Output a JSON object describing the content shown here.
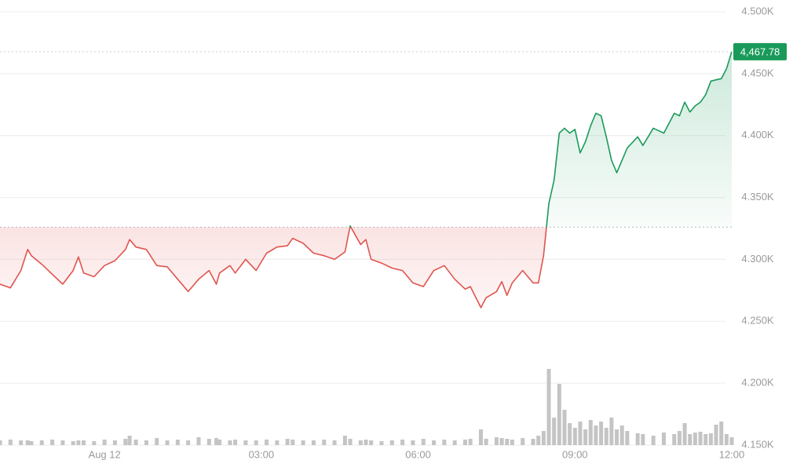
{
  "chart_data": {
    "type": "line",
    "x": [
      -2,
      -1.8,
      -1.6,
      -1.47,
      -1.4,
      -1.2,
      -1,
      -0.8,
      -0.6,
      -0.5,
      -0.4,
      -0.2,
      0,
      0.2,
      0.4,
      0.48,
      0.6,
      0.8,
      1,
      1.2,
      1.4,
      1.6,
      1.8,
      2,
      2.14,
      2.2,
      2.4,
      2.5,
      2.7,
      2.9,
      3.1,
      3.3,
      3.5,
      3.6,
      3.8,
      4,
      4.2,
      4.4,
      4.6,
      4.7,
      4.9,
      5,
      5.1,
      5.3,
      5.5,
      5.7,
      5.9,
      6.1,
      6.3,
      6.5,
      6.7,
      6.9,
      7,
      7.2,
      7.3,
      7.5,
      7.6,
      7.7,
      7.8,
      8,
      8.2,
      8.3,
      8.4,
      8.5,
      8.6,
      8.7,
      8.8,
      8.9,
      9,
      9.1,
      9.2,
      9.3,
      9.4,
      9.5,
      9.6,
      9.7,
      9.8,
      9.9,
      10,
      10.2,
      10.3,
      10.5,
      10.7,
      10.9,
      11,
      11.1,
      11.2,
      11.3,
      11.4,
      11.5,
      11.6,
      11.7,
      11.8,
      11.9,
      12
    ],
    "values": [
      4280,
      4277,
      4291,
      4308,
      4303,
      4296,
      4288,
      4280,
      4291,
      4302,
      4289,
      4286,
      4295,
      4299,
      4308,
      4316,
      4310,
      4308,
      4295,
      4294,
      4284,
      4274,
      4284,
      4291,
      4280,
      4289,
      4295,
      4289,
      4300,
      4291,
      4305,
      4310,
      4311,
      4317,
      4313,
      4305,
      4303,
      4300,
      4306,
      4327,
      4312,
      4316,
      4300,
      4297,
      4293,
      4291,
      4281,
      4278,
      4291,
      4295,
      4284,
      4276,
      4278,
      4261,
      4269,
      4274,
      4282,
      4271,
      4281,
      4291,
      4281,
      4281,
      4303,
      4345,
      4364,
      4402,
      4406,
      4402,
      4405,
      4386,
      4395,
      4408,
      4418,
      4416,
      4399,
      4380,
      4370,
      4380,
      4390,
      4399,
      4392,
      4406,
      4402,
      4418,
      4416,
      4427,
      4419,
      4424,
      4427,
      4433,
      4444,
      4445,
      4446,
      4454,
      4467.78
    ],
    "volume": [
      6,
      7,
      6,
      6,
      5,
      6,
      7,
      6,
      5,
      6,
      6,
      5,
      7,
      6,
      8,
      12,
      7,
      6,
      9,
      6,
      7,
      6,
      10,
      8,
      9,
      7,
      6,
      7,
      6,
      6,
      7,
      6,
      8,
      7,
      6,
      6,
      7,
      6,
      12,
      8,
      6,
      7,
      6,
      5,
      6,
      7,
      6,
      8,
      6,
      7,
      6,
      7,
      8,
      20,
      8,
      10,
      9,
      8,
      7,
      9,
      8,
      12,
      18,
      97,
      35,
      78,
      45,
      28,
      22,
      30,
      20,
      32,
      25,
      30,
      22,
      35,
      20,
      25,
      18,
      15,
      14,
      12,
      16,
      14,
      18,
      28,
      14,
      16,
      17,
      14,
      15,
      26,
      30,
      14,
      10
    ],
    "volume_color": "#c4c4c4",
    "last_value_label": "4,467.78",
    "baseline": 4326,
    "up_color": "#1a9a5a",
    "down_color": "#e0544e",
    "xlim": [
      -2,
      12
    ],
    "xticks": [
      {
        "value": 0,
        "label": "Aug 12"
      },
      {
        "value": 3,
        "label": "03:00"
      },
      {
        "value": 6,
        "label": "06:00"
      },
      {
        "value": 9,
        "label": "09:00"
      },
      {
        "value": 12,
        "label": "12:00"
      }
    ],
    "ylim": [
      4150,
      4500
    ],
    "yticks": [
      {
        "value": 4150,
        "label": "4.150K"
      },
      {
        "value": 4200,
        "label": "4.200K"
      },
      {
        "value": 4250,
        "label": "4.250K"
      },
      {
        "value": 4300,
        "label": "4.300K"
      },
      {
        "value": 4350,
        "label": "4.350K"
      },
      {
        "value": 4400,
        "label": "4.400K"
      },
      {
        "value": 4450,
        "label": "4.450K"
      },
      {
        "value": 4500,
        "label": "4.500K"
      }
    ],
    "grid": true
  }
}
